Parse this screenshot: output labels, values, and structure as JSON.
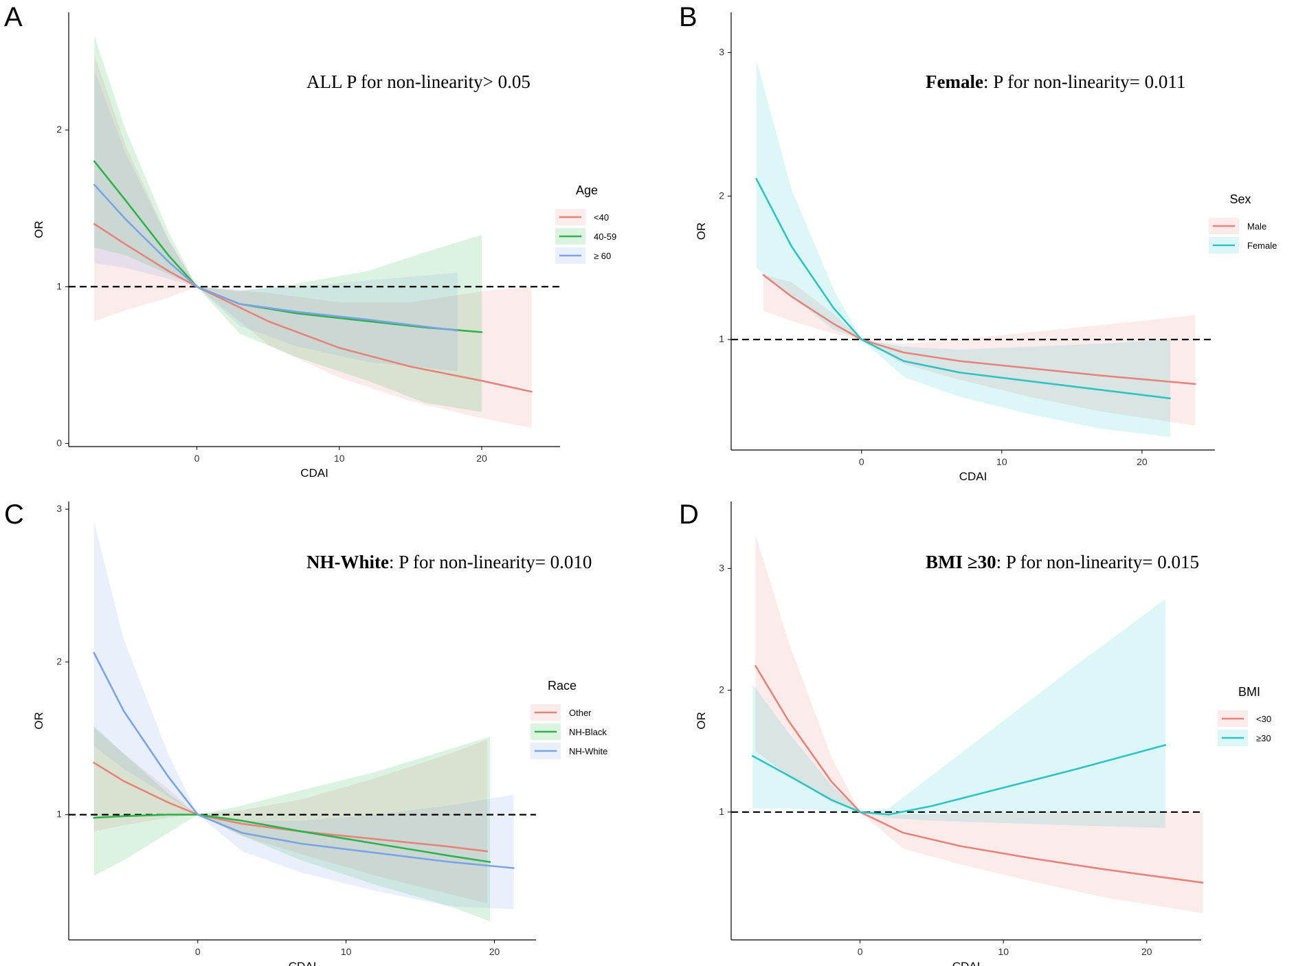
{
  "figure": {
    "xlabel": "CDAI",
    "ylabel": "OR"
  },
  "chart_data": [
    {
      "panel": "A",
      "type": "line",
      "annotation": {
        "bold": "",
        "text": "ALL P for non-linearity> 0.05"
      },
      "xlabel": "CDAI",
      "ylabel": "OR",
      "xlim": [
        -9,
        25.5
      ],
      "ylim": [
        -0.02,
        2.75
      ],
      "xticks": [
        "0",
        "10",
        "20"
      ],
      "xtick_values": [
        0,
        10,
        20
      ],
      "yticks": [
        "0",
        "1",
        "2"
      ],
      "ytick_values": [
        0,
        1,
        2
      ],
      "reference_line": 1,
      "legend": {
        "title": "Age",
        "position": "right"
      },
      "series": [
        {
          "name": "<40",
          "color": "#E8837A",
          "x": [
            -7.2,
            -5,
            -2,
            0,
            5,
            10,
            15,
            20,
            23.5
          ],
          "y": [
            1.4,
            1.27,
            1.1,
            1.0,
            0.78,
            0.61,
            0.49,
            0.4,
            0.33
          ],
          "lower": [
            0.78,
            0.85,
            0.93,
            1.0,
            0.63,
            0.42,
            0.27,
            0.16,
            0.1
          ],
          "upper": [
            2.48,
            1.9,
            1.3,
            1.0,
            0.96,
            0.9,
            0.9,
            0.97,
            1.0
          ]
        },
        {
          "name": "40-59",
          "color": "#2EB34A",
          "x": [
            -7.2,
            -5,
            -2,
            0,
            3,
            7,
            12,
            16,
            20
          ],
          "y": [
            1.8,
            1.55,
            1.2,
            1.0,
            0.89,
            0.83,
            0.78,
            0.74,
            0.71
          ],
          "lower": [
            1.25,
            1.2,
            1.08,
            1.0,
            0.7,
            0.55,
            0.4,
            0.26,
            0.2
          ],
          "upper": [
            2.6,
            2.0,
            1.35,
            1.0,
            0.97,
            1.02,
            1.1,
            1.22,
            1.33
          ]
        },
        {
          "name": "≥ 60",
          "color": "#7BA4E4",
          "x": [
            -7.2,
            -5,
            -2,
            0,
            3,
            7,
            12,
            18.3
          ],
          "y": [
            1.65,
            1.43,
            1.16,
            1.0,
            0.89,
            0.84,
            0.79,
            0.72
          ],
          "lower": [
            1.15,
            1.12,
            1.05,
            1.0,
            0.75,
            0.62,
            0.52,
            0.46
          ],
          "upper": [
            2.38,
            1.85,
            1.3,
            1.0,
            0.98,
            1.0,
            1.04,
            1.09
          ]
        }
      ]
    },
    {
      "panel": "B",
      "type": "line",
      "annotation": {
        "bold": "Female",
        "text": ": P for non-linearity= 0.011"
      },
      "xlabel": "CDAI",
      "ylabel": "OR",
      "xlim": [
        -9.3,
        25.2
      ],
      "ylim": [
        0.23,
        3.28
      ],
      "xticks": [
        "0",
        "10",
        "20"
      ],
      "xtick_values": [
        0,
        10,
        20
      ],
      "yticks": [
        "1",
        "2",
        "3"
      ],
      "ytick_values": [
        1,
        2,
        3
      ],
      "reference_line": 1,
      "legend": {
        "title": "Sex",
        "position": "right"
      },
      "series": [
        {
          "name": "Male",
          "color": "#E8837A",
          "x": [
            -7,
            -5,
            -2,
            0,
            3,
            7,
            12,
            17,
            23.8
          ],
          "y": [
            1.45,
            1.3,
            1.11,
            1.0,
            0.91,
            0.85,
            0.8,
            0.75,
            0.69
          ],
          "lower": [
            1.2,
            1.13,
            1.04,
            1.0,
            0.83,
            0.72,
            0.6,
            0.5,
            0.4
          ],
          "upper": [
            1.45,
            1.4,
            1.18,
            1.0,
            0.97,
            1.0,
            1.05,
            1.1,
            1.17
          ]
        },
        {
          "name": "Female",
          "color": "#2EC4C4",
          "x": [
            -7.5,
            -5,
            -2,
            0,
            3,
            7,
            12,
            17,
            22
          ],
          "y": [
            2.12,
            1.65,
            1.22,
            1.0,
            0.85,
            0.77,
            0.71,
            0.65,
            0.59
          ],
          "lower": [
            1.5,
            1.3,
            1.07,
            1.0,
            0.74,
            0.6,
            0.48,
            0.38,
            0.32
          ],
          "upper": [
            2.95,
            2.05,
            1.35,
            1.0,
            0.95,
            0.93,
            0.95,
            0.97,
            1.0
          ]
        }
      ]
    },
    {
      "panel": "C",
      "type": "line",
      "annotation": {
        "bold": "NH-White",
        "text": ": P for non-linearity= 0.010"
      },
      "xlabel": "CDAI",
      "ylabel": "OR",
      "xlim": [
        -8.7,
        22.8
      ],
      "ylim": [
        0.18,
        3.05
      ],
      "xticks": [
        "0",
        "10",
        "20"
      ],
      "xtick_values": [
        0,
        10,
        20
      ],
      "yticks": [
        "1",
        "2",
        "3"
      ],
      "ytick_values": [
        1,
        2,
        3
      ],
      "reference_line": 1,
      "legend": {
        "title": "Race",
        "position": "right"
      },
      "series": [
        {
          "name": "Other",
          "color": "#E8837A",
          "x": [
            -7,
            -5,
            -2,
            0,
            3,
            7,
            12,
            17,
            19.5
          ],
          "y": [
            1.34,
            1.22,
            1.08,
            1.0,
            0.94,
            0.89,
            0.84,
            0.79,
            0.76
          ],
          "lower": [
            0.89,
            0.93,
            0.98,
            1.0,
            0.86,
            0.74,
            0.6,
            0.48,
            0.42
          ],
          "upper": [
            1.57,
            1.4,
            1.17,
            1.0,
            1.03,
            1.1,
            1.24,
            1.4,
            1.49
          ]
        },
        {
          "name": "NH-Black",
          "color": "#2EB34A",
          "x": [
            -7,
            -5,
            -2,
            0,
            3,
            7,
            12,
            17,
            19.7
          ],
          "y": [
            0.98,
            0.99,
            1.0,
            1.0,
            0.96,
            0.89,
            0.81,
            0.73,
            0.69
          ],
          "lower": [
            0.6,
            0.7,
            0.88,
            1.0,
            0.86,
            0.7,
            0.54,
            0.4,
            0.3
          ],
          "upper": [
            1.58,
            1.4,
            1.14,
            1.0,
            1.06,
            1.16,
            1.28,
            1.43,
            1.51
          ]
        },
        {
          "name": "NH-White",
          "color": "#7BA4E4",
          "x": [
            -7,
            -5,
            -2,
            0,
            3,
            7,
            12,
            17,
            21.3
          ],
          "y": [
            2.06,
            1.68,
            1.25,
            1.0,
            0.88,
            0.81,
            0.75,
            0.69,
            0.65
          ],
          "lower": [
            1.45,
            1.3,
            1.12,
            1.0,
            0.76,
            0.62,
            0.5,
            0.4,
            0.38
          ],
          "upper": [
            2.92,
            2.15,
            1.4,
            1.0,
            0.96,
            0.96,
            1.0,
            1.06,
            1.13
          ]
        }
      ]
    },
    {
      "panel": "D",
      "type": "line",
      "annotation": {
        "bold": "BMI ≥30",
        "text": ": P for non-linearity= 0.015"
      },
      "xlabel": "CDAI",
      "ylabel": "OR",
      "xlim": [
        -9,
        23.8
      ],
      "ylim": [
        -0.05,
        3.55
      ],
      "xticks": [
        "0",
        "10",
        "20"
      ],
      "xtick_values": [
        0,
        10,
        20
      ],
      "yticks": [
        "1",
        "2",
        "3"
      ],
      "ytick_values": [
        1,
        2,
        3
      ],
      "reference_line": 1,
      "legend": {
        "title": "BMI",
        "position": "right"
      },
      "series": [
        {
          "name": "<30",
          "color": "#E8837A",
          "x": [
            -7.3,
            -5,
            -2,
            0,
            3,
            7,
            12,
            17,
            23.9
          ],
          "y": [
            2.2,
            1.75,
            1.25,
            1.0,
            0.83,
            0.72,
            0.62,
            0.53,
            0.42
          ],
          "lower": [
            1.5,
            1.3,
            1.08,
            1.0,
            0.7,
            0.57,
            0.43,
            0.3,
            0.17
          ],
          "upper": [
            3.28,
            2.4,
            1.45,
            1.0,
            0.98,
            0.99,
            1.0,
            1.0,
            1.0
          ]
        },
        {
          "name": "≥30",
          "color": "#2EC4C4",
          "x": [
            -7.5,
            -5,
            -2,
            0,
            2,
            5,
            10,
            15,
            21.3
          ],
          "y": [
            1.46,
            1.3,
            1.1,
            1.0,
            0.98,
            1.05,
            1.2,
            1.35,
            1.55
          ],
          "lower": [
            1.03,
            1.03,
            1.01,
            1.0,
            0.95,
            0.93,
            0.91,
            0.89,
            0.87
          ],
          "upper": [
            2.05,
            1.65,
            1.22,
            1.0,
            1.03,
            1.3,
            1.75,
            2.2,
            2.75
          ]
        }
      ]
    }
  ]
}
